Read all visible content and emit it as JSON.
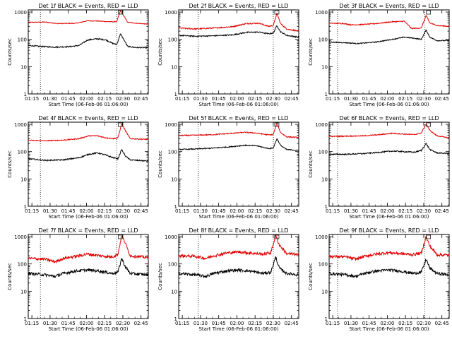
{
  "common": {
    "ylabel": "Counts/sec",
    "xlabel": "Start Time (06-Feb-06 01:06:00)",
    "y_tick_labels": [
      "1",
      "10",
      "100",
      "1000"
    ],
    "x_tick_labels": [
      "01:15",
      "01:30",
      "01:45",
      "02:00",
      "02:15",
      "02:30",
      "02:45"
    ],
    "colors": {
      "events": "#000000",
      "lld": "#e00000"
    }
  },
  "chart_data": [
    {
      "type": "line",
      "title": "Det 1f BLACK = Events, RED = LLD",
      "yscale": "log",
      "ylim": [
        1,
        1200
      ],
      "xlim_min": [
        6,
        105
      ],
      "x_ticks_min": [
        9,
        24,
        39,
        54,
        69,
        84,
        99
      ],
      "dashed_markers_min": [
        16,
        79
      ],
      "black_anchors": [
        [
          6,
          60
        ],
        [
          16,
          55
        ],
        [
          28,
          52
        ],
        [
          40,
          54
        ],
        [
          48,
          60
        ],
        [
          55,
          95
        ],
        [
          63,
          105
        ],
        [
          70,
          95
        ],
        [
          76,
          70
        ],
        [
          79,
          65
        ],
        [
          82,
          160
        ],
        [
          85,
          95
        ],
        [
          88,
          55
        ],
        [
          95,
          50
        ],
        [
          105,
          50
        ]
      ],
      "red_anchors": [
        [
          6,
          420
        ],
        [
          20,
          430
        ],
        [
          30,
          380
        ],
        [
          45,
          385
        ],
        [
          55,
          480
        ],
        [
          63,
          470
        ],
        [
          70,
          450
        ],
        [
          76,
          440
        ],
        [
          79,
          450
        ],
        [
          82,
          1100
        ],
        [
          85,
          700
        ],
        [
          88,
          420
        ],
        [
          95,
          390
        ],
        [
          105,
          360
        ]
      ],
      "noise": [
        0.05,
        0.03
      ]
    },
    {
      "type": "line",
      "title": "Det 2f BLACK = Events, RED = LLD",
      "yscale": "log",
      "ylim": [
        1,
        1200
      ],
      "xlim_min": [
        6,
        105
      ],
      "x_ticks_min": [
        9,
        24,
        39,
        54,
        69,
        84,
        99
      ],
      "dashed_markers_min": [
        22,
        84
      ],
      "black_anchors": [
        [
          6,
          140
        ],
        [
          20,
          130
        ],
        [
          35,
          135
        ],
        [
          50,
          145
        ],
        [
          62,
          180
        ],
        [
          72,
          185
        ],
        [
          80,
          160
        ],
        [
          84,
          170
        ],
        [
          87,
          320
        ],
        [
          90,
          190
        ],
        [
          95,
          140
        ],
        [
          105,
          120
        ]
      ],
      "red_anchors": [
        [
          6,
          260
        ],
        [
          20,
          240
        ],
        [
          35,
          260
        ],
        [
          50,
          290
        ],
        [
          62,
          380
        ],
        [
          72,
          390
        ],
        [
          80,
          300
        ],
        [
          84,
          320
        ],
        [
          87,
          900
        ],
        [
          90,
          380
        ],
        [
          95,
          240
        ],
        [
          105,
          200
        ]
      ],
      "noise": [
        0.05,
        0.05
      ]
    },
    {
      "type": "line",
      "title": "Det 3f BLACK = Events, RED = LLD",
      "yscale": "log",
      "ylim": [
        1,
        1200
      ],
      "xlim_min": [
        6,
        105
      ],
      "x_ticks_min": [
        9,
        24,
        39,
        54,
        69,
        84,
        99
      ],
      "dashed_markers_min": [
        13,
        85
      ],
      "black_anchors": [
        [
          6,
          80
        ],
        [
          20,
          75
        ],
        [
          30,
          70
        ],
        [
          45,
          80
        ],
        [
          58,
          100
        ],
        [
          68,
          120
        ],
        [
          76,
          110
        ],
        [
          82,
          100
        ],
        [
          86,
          220
        ],
        [
          89,
          120
        ],
        [
          95,
          90
        ],
        [
          105,
          90
        ]
      ],
      "red_anchors": [
        [
          6,
          390
        ],
        [
          18,
          380
        ],
        [
          24,
          340
        ],
        [
          34,
          350
        ],
        [
          45,
          380
        ],
        [
          58,
          440
        ],
        [
          68,
          460
        ],
        [
          74,
          250
        ],
        [
          82,
          260
        ],
        [
          86,
          750
        ],
        [
          89,
          400
        ],
        [
          95,
          320
        ],
        [
          105,
          300
        ]
      ],
      "noise": [
        0.04,
        0.04
      ]
    },
    {
      "type": "line",
      "title": "Det 4f BLACK = Events, RED = LLD",
      "yscale": "log",
      "ylim": [
        1,
        1200
      ],
      "xlim_min": [
        6,
        105
      ],
      "x_ticks_min": [
        9,
        24,
        39,
        54,
        69,
        84,
        99
      ],
      "dashed_markers_min": [
        16,
        79
      ],
      "black_anchors": [
        [
          6,
          55
        ],
        [
          20,
          48
        ],
        [
          35,
          50
        ],
        [
          48,
          60
        ],
        [
          56,
          80
        ],
        [
          63,
          90
        ],
        [
          70,
          75
        ],
        [
          76,
          60
        ],
        [
          80,
          55
        ],
        [
          83,
          120
        ],
        [
          86,
          70
        ],
        [
          90,
          50
        ],
        [
          105,
          45
        ]
      ],
      "red_anchors": [
        [
          6,
          260
        ],
        [
          20,
          250
        ],
        [
          35,
          265
        ],
        [
          48,
          300
        ],
        [
          56,
          380
        ],
        [
          63,
          380
        ],
        [
          70,
          320
        ],
        [
          76,
          300
        ],
        [
          80,
          320
        ],
        [
          83,
          1050
        ],
        [
          86,
          600
        ],
        [
          90,
          300
        ],
        [
          105,
          280
        ]
      ],
      "noise": [
        0.05,
        0.04
      ]
    },
    {
      "type": "line",
      "title": "Det 5f BLACK = Events, RED = LLD",
      "yscale": "log",
      "ylim": [
        1,
        1200
      ],
      "xlim_min": [
        6,
        105
      ],
      "x_ticks_min": [
        9,
        24,
        39,
        54,
        69,
        84,
        99
      ],
      "dashed_markers_min": [
        22,
        84
      ],
      "black_anchors": [
        [
          6,
          120
        ],
        [
          20,
          125
        ],
        [
          35,
          135
        ],
        [
          48,
          150
        ],
        [
          60,
          170
        ],
        [
          70,
          165
        ],
        [
          80,
          130
        ],
        [
          84,
          135
        ],
        [
          87,
          300
        ],
        [
          90,
          170
        ],
        [
          95,
          120
        ],
        [
          105,
          110
        ]
      ],
      "red_anchors": [
        [
          6,
          390
        ],
        [
          20,
          400
        ],
        [
          35,
          420
        ],
        [
          50,
          470
        ],
        [
          60,
          510
        ],
        [
          70,
          480
        ],
        [
          80,
          410
        ],
        [
          84,
          420
        ],
        [
          87,
          1100
        ],
        [
          90,
          500
        ],
        [
          95,
          350
        ],
        [
          105,
          330
        ]
      ],
      "noise": [
        0.04,
        0.04
      ]
    },
    {
      "type": "line",
      "title": "Det 6f BLACK = Events, RED = LLD",
      "yscale": "log",
      "ylim": [
        1,
        1200
      ],
      "xlim_min": [
        6,
        105
      ],
      "x_ticks_min": [
        9,
        24,
        39,
        54,
        69,
        84,
        99
      ],
      "dashed_markers_min": [
        13,
        85
      ],
      "black_anchors": [
        [
          6,
          80
        ],
        [
          20,
          80
        ],
        [
          35,
          85
        ],
        [
          48,
          95
        ],
        [
          58,
          105
        ],
        [
          68,
          100
        ],
        [
          76,
          95
        ],
        [
          82,
          110
        ],
        [
          86,
          200
        ],
        [
          89,
          120
        ],
        [
          95,
          90
        ],
        [
          105,
          85
        ]
      ],
      "red_anchors": [
        [
          6,
          360
        ],
        [
          20,
          370
        ],
        [
          35,
          380
        ],
        [
          48,
          420
        ],
        [
          58,
          470
        ],
        [
          68,
          440
        ],
        [
          76,
          420
        ],
        [
          82,
          480
        ],
        [
          86,
          1050
        ],
        [
          89,
          600
        ],
        [
          95,
          380
        ],
        [
          105,
          320
        ]
      ],
      "noise": [
        0.05,
        0.04
      ]
    },
    {
      "type": "line",
      "title": "Det 7f BLACK = Events, RED = LLD",
      "yscale": "log",
      "ylim": [
        1,
        1200
      ],
      "xlim_min": [
        6,
        105
      ],
      "x_ticks_min": [
        9,
        24,
        39,
        54,
        69,
        84,
        99
      ],
      "dashed_markers_min": [
        16,
        79
      ],
      "black_anchors": [
        [
          6,
          45
        ],
        [
          20,
          40
        ],
        [
          28,
          35
        ],
        [
          35,
          45
        ],
        [
          45,
          55
        ],
        [
          55,
          60
        ],
        [
          65,
          55
        ],
        [
          75,
          45
        ],
        [
          80,
          50
        ],
        [
          83,
          160
        ],
        [
          86,
          80
        ],
        [
          90,
          45
        ],
        [
          105,
          40
        ]
      ],
      "red_anchors": [
        [
          6,
          160
        ],
        [
          20,
          150
        ],
        [
          28,
          120
        ],
        [
          35,
          160
        ],
        [
          45,
          190
        ],
        [
          55,
          230
        ],
        [
          65,
          200
        ],
        [
          75,
          180
        ],
        [
          80,
          230
        ],
        [
          83,
          1100
        ],
        [
          86,
          600
        ],
        [
          90,
          200
        ],
        [
          105,
          170
        ]
      ],
      "noise": [
        0.12,
        0.12
      ]
    },
    {
      "type": "line",
      "title": "Det 8f BLACK = Events, RED = LLD",
      "yscale": "log",
      "ylim": [
        1,
        1200
      ],
      "xlim_min": [
        6,
        105
      ],
      "x_ticks_min": [
        9,
        24,
        39,
        54,
        69,
        84,
        99
      ],
      "dashed_markers_min": [
        22,
        84
      ],
      "black_anchors": [
        [
          6,
          45
        ],
        [
          20,
          40
        ],
        [
          28,
          35
        ],
        [
          35,
          45
        ],
        [
          45,
          55
        ],
        [
          55,
          60
        ],
        [
          65,
          55
        ],
        [
          75,
          45
        ],
        [
          82,
          50
        ],
        [
          86,
          180
        ],
        [
          89,
          70
        ],
        [
          95,
          45
        ],
        [
          105,
          40
        ]
      ],
      "red_anchors": [
        [
          6,
          200
        ],
        [
          20,
          190
        ],
        [
          28,
          160
        ],
        [
          35,
          200
        ],
        [
          45,
          250
        ],
        [
          55,
          280
        ],
        [
          65,
          250
        ],
        [
          75,
          230
        ],
        [
          82,
          260
        ],
        [
          86,
          1100
        ],
        [
          89,
          500
        ],
        [
          95,
          240
        ],
        [
          105,
          220
        ]
      ],
      "noise": [
        0.12,
        0.12
      ]
    },
    {
      "type": "line",
      "title": "Det 9f BLACK = Events, RED = LLD",
      "yscale": "log",
      "ylim": [
        1,
        1200
      ],
      "xlim_min": [
        6,
        105
      ],
      "x_ticks_min": [
        9,
        24,
        39,
        54,
        69,
        84,
        99
      ],
      "dashed_markers_min": [
        13,
        85
      ],
      "black_anchors": [
        [
          6,
          45
        ],
        [
          20,
          40
        ],
        [
          28,
          35
        ],
        [
          35,
          45
        ],
        [
          45,
          55
        ],
        [
          55,
          60
        ],
        [
          65,
          55
        ],
        [
          75,
          45
        ],
        [
          82,
          50
        ],
        [
          86,
          150
        ],
        [
          89,
          70
        ],
        [
          95,
          45
        ],
        [
          105,
          40
        ]
      ],
      "red_anchors": [
        [
          6,
          190
        ],
        [
          20,
          180
        ],
        [
          28,
          150
        ],
        [
          35,
          190
        ],
        [
          45,
          230
        ],
        [
          55,
          260
        ],
        [
          65,
          240
        ],
        [
          75,
          220
        ],
        [
          82,
          250
        ],
        [
          86,
          1000
        ],
        [
          89,
          450
        ],
        [
          95,
          220
        ],
        [
          105,
          210
        ]
      ],
      "noise": [
        0.12,
        0.12
      ]
    }
  ]
}
